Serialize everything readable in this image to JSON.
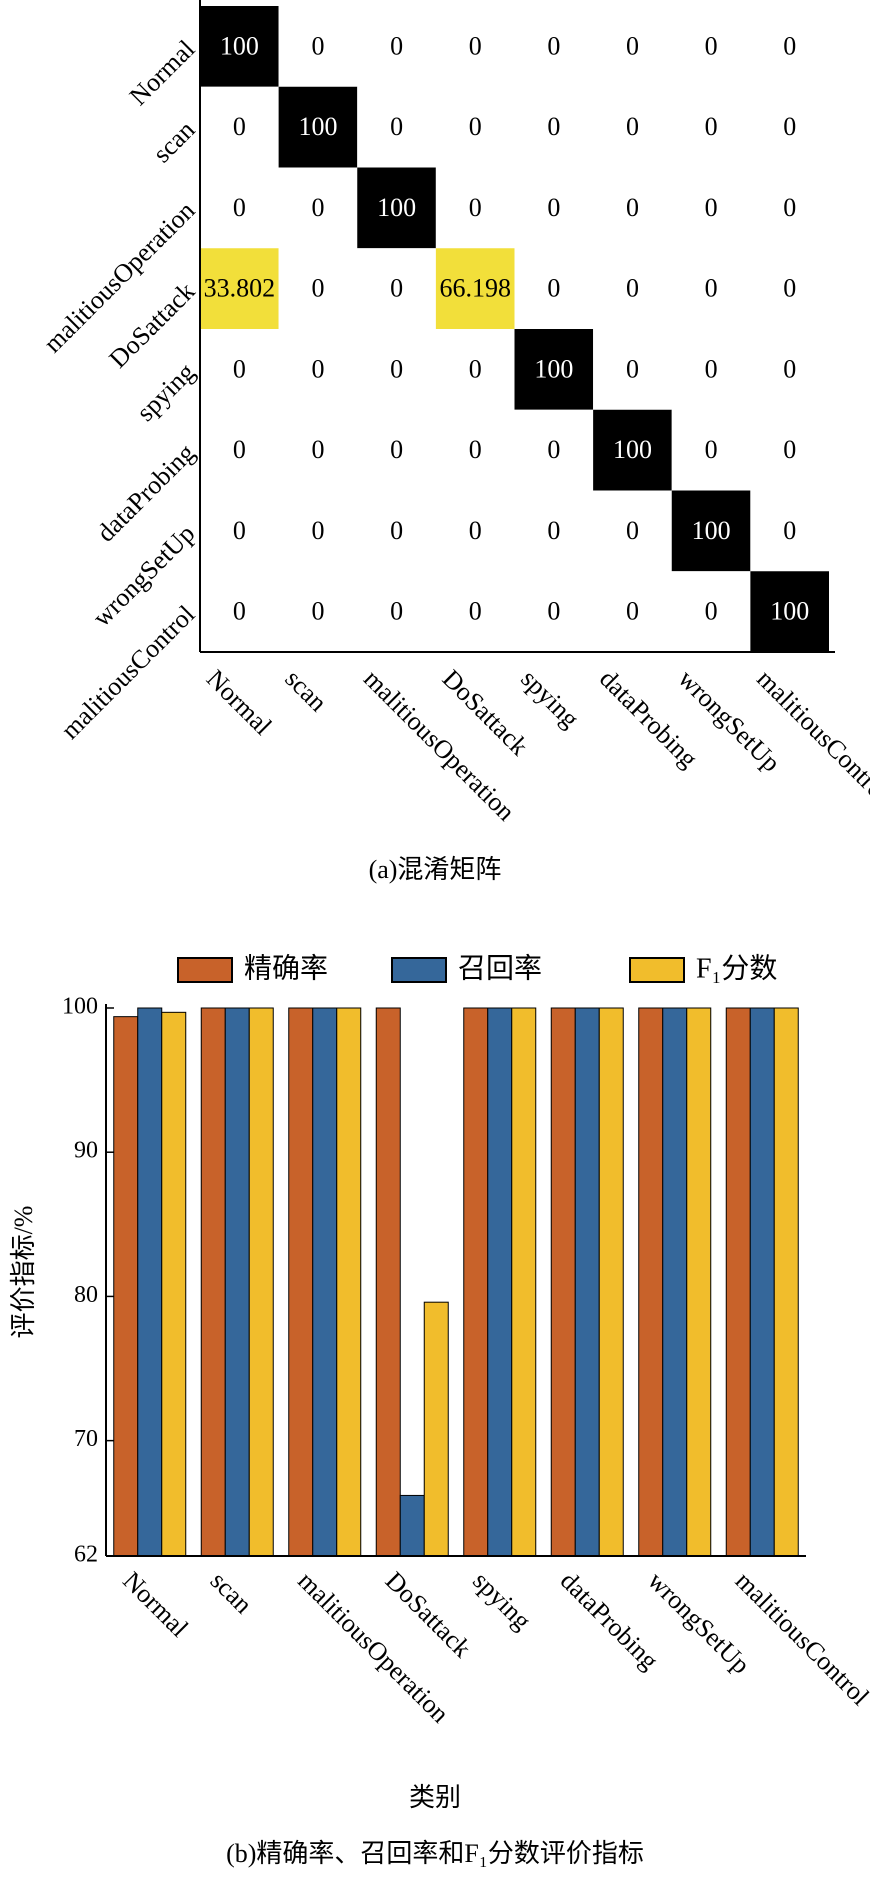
{
  "chart_data": [
    {
      "type": "heatmap",
      "caption": "(a)混淆矩阵",
      "rows": [
        "Normal",
        "scan",
        "malitiousOperation",
        "DoSattack",
        "spying",
        "dataProbing",
        "wrongSetUp",
        "malitiousControl"
      ],
      "columns": [
        "Normal",
        "scan",
        "malitiousOperation",
        "DoSattack",
        "spying",
        "dataProbing",
        "wrongSetUp",
        "malitiousControl"
      ],
      "values": [
        [
          100,
          0,
          0,
          0,
          0,
          0,
          0,
          0
        ],
        [
          0,
          100,
          0,
          0,
          0,
          0,
          0,
          0
        ],
        [
          0,
          0,
          100,
          0,
          0,
          0,
          0,
          0
        ],
        [
          33.802,
          0,
          0,
          66.198,
          0,
          0,
          0,
          0
        ],
        [
          0,
          0,
          0,
          0,
          100,
          0,
          0,
          0
        ],
        [
          0,
          0,
          0,
          0,
          0,
          100,
          0,
          0
        ],
        [
          0,
          0,
          0,
          0,
          0,
          0,
          100,
          0
        ],
        [
          0,
          0,
          0,
          0,
          0,
          0,
          0,
          100
        ]
      ],
      "color_scale": [
        "#ffffff",
        "#f2df3a",
        "#000000"
      ]
    },
    {
      "type": "bar",
      "caption": "(b)精确率、召回率和F₁分数评价指标",
      "x_label": "类别",
      "y_label": "评价指标/%",
      "categories": [
        "Normal",
        "scan",
        "malitiousOperation",
        "DoSattack",
        "spying",
        "dataProbing",
        "wrongSetUp",
        "malitiousControl"
      ],
      "series": [
        {
          "name": "精确率",
          "color": "#c8622a",
          "values": [
            99.4,
            100,
            100,
            100,
            100,
            100,
            100,
            100
          ]
        },
        {
          "name": "召回率",
          "color": "#35679a",
          "values": [
            100,
            100,
            100,
            66.2,
            100,
            100,
            100,
            100
          ]
        },
        {
          "name": "F₁分数",
          "color": "#f1bd2c",
          "values": [
            99.7,
            100,
            100,
            79.6,
            100,
            100,
            100,
            100
          ]
        }
      ],
      "ylim": [
        62,
        100
      ],
      "yticks": [
        62,
        70,
        80,
        90,
        100
      ]
    }
  ]
}
